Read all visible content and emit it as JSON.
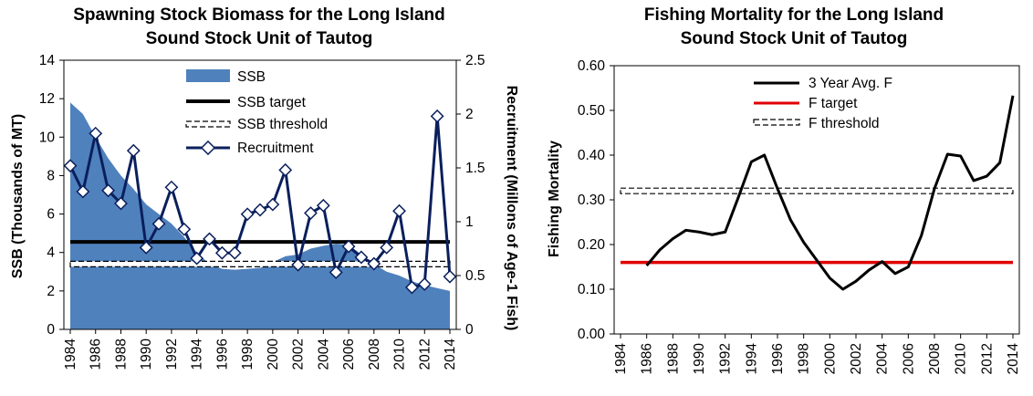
{
  "colors": {
    "ssb_fill": "#4f81bd",
    "recruitment": "#0a1f5c",
    "target": "#000000",
    "threshold": "#000000",
    "f_line": "#000000",
    "f_target": "#e00000",
    "f_threshold": "#000000"
  },
  "chart_data": [
    {
      "type": "area",
      "title": [
        "Spawning Stock Biomass for the Long Island",
        "Sound Stock Unit of Tautog"
      ],
      "xlabel": "",
      "ylabel": "SSB (Thousands of MT)",
      "y2label": "Recruitment (Millons of Age-1 Fish)",
      "xlim": [
        1984,
        2014
      ],
      "ylim": [
        0,
        14
      ],
      "y2lim": [
        0,
        2.5
      ],
      "x_ticks": [
        "1984",
        "1986",
        "1988",
        "1990",
        "1992",
        "1994",
        "1996",
        "1998",
        "2000",
        "2002",
        "2004",
        "2006",
        "2008",
        "2010",
        "2012",
        "2014"
      ],
      "y_ticks": [
        "0",
        "2",
        "4",
        "6",
        "8",
        "10",
        "12",
        "14"
      ],
      "y2_ticks": [
        "0",
        "0.5",
        "1",
        "1.5",
        "2",
        "2.5"
      ],
      "legend": [
        "SSB",
        "SSB target",
        "SSB threshold",
        "Recruitment"
      ],
      "years": [
        1984,
        1985,
        1986,
        1987,
        1988,
        1989,
        1990,
        1991,
        1992,
        1993,
        1994,
        1995,
        1996,
        1997,
        1998,
        1999,
        2000,
        2001,
        2002,
        2003,
        2004,
        2005,
        2006,
        2007,
        2008,
        2009,
        2010,
        2011,
        2012,
        2013,
        2014
      ],
      "series": [
        {
          "name": "SSB",
          "axis": "left",
          "values": [
            11.8,
            11.2,
            10.0,
            8.9,
            8.0,
            7.3,
            6.5,
            6.0,
            5.5,
            4.8,
            4.0,
            3.4,
            3.15,
            3.1,
            3.15,
            3.2,
            3.5,
            3.8,
            3.9,
            4.2,
            4.35,
            4.45,
            4.4,
            3.9,
            3.4,
            3.0,
            2.8,
            2.5,
            2.3,
            2.15,
            2.0
          ]
        },
        {
          "name": "Recruitment",
          "axis": "right",
          "values": [
            1.52,
            1.28,
            1.82,
            1.29,
            1.17,
            1.66,
            0.76,
            0.98,
            1.32,
            0.93,
            0.66,
            0.84,
            0.71,
            0.71,
            1.07,
            1.11,
            1.16,
            1.48,
            0.6,
            1.08,
            1.15,
            0.53,
            0.77,
            0.67,
            0.61,
            0.76,
            1.1,
            0.39,
            0.42,
            1.98,
            0.49
          ]
        },
        {
          "name": "SSB target",
          "axis": "left",
          "values": [
            4.55
          ]
        },
        {
          "name": "SSB threshold",
          "axis": "left",
          "values": [
            3.4
          ]
        }
      ]
    },
    {
      "type": "line",
      "title": [
        "Fishing Mortality for the Long Island",
        "Sound Stock Unit of Tautog"
      ],
      "xlabel": "",
      "ylabel": "Fishing Mortality",
      "xlim": [
        1984,
        2014
      ],
      "ylim": [
        0,
        0.6
      ],
      "x_ticks": [
        "1984",
        "1986",
        "1988",
        "1990",
        "1992",
        "1994",
        "1996",
        "1998",
        "2000",
        "2002",
        "2004",
        "2006",
        "2008",
        "2010",
        "2012",
        "2014"
      ],
      "y_ticks": [
        "0.00",
        "0.10",
        "0.20",
        "0.30",
        "0.40",
        "0.50",
        "0.60"
      ],
      "legend": [
        "3 Year Avg. F",
        "F target",
        "F threshold"
      ],
      "years": [
        1986,
        1987,
        1988,
        1989,
        1990,
        1991,
        1992,
        1993,
        1994,
        1995,
        1996,
        1997,
        1998,
        1999,
        2000,
        2001,
        2002,
        2003,
        2004,
        2005,
        2006,
        2007,
        2008,
        2009,
        2010,
        2011,
        2012,
        2013,
        2014
      ],
      "series": [
        {
          "name": "3 Year Avg. F",
          "values": [
            0.153,
            0.188,
            0.213,
            0.232,
            0.228,
            0.222,
            0.228,
            0.305,
            0.385,
            0.4,
            0.325,
            0.255,
            0.205,
            0.165,
            0.125,
            0.1,
            0.118,
            0.143,
            0.162,
            0.135,
            0.15,
            0.22,
            0.325,
            0.402,
            0.398,
            0.343,
            0.353,
            0.383,
            0.533
          ]
        },
        {
          "name": "F target",
          "values": [
            0.16
          ]
        },
        {
          "name": "F threshold",
          "values": [
            0.32
          ]
        }
      ]
    }
  ]
}
